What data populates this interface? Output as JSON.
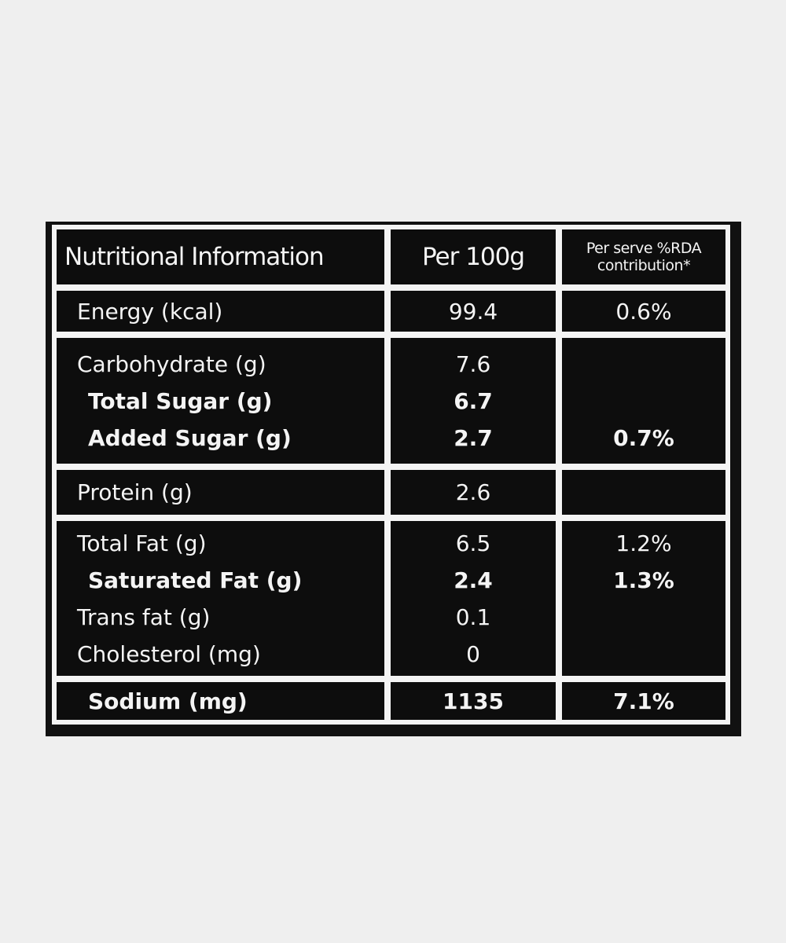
{
  "table": {
    "header": [
      "Nutritional Information",
      "Per 100g",
      "Per serve %RDA contribution*"
    ],
    "groups": [
      {
        "rows": [
          {
            "name": "Energy (kcal)",
            "per100g": "99.4",
            "rda": "0.6%"
          }
        ]
      },
      {
        "rows": [
          {
            "name": "Carbohydrate (g)",
            "per100g": "7.6"
          },
          {
            "name": "Total Sugar (g)",
            "per100g": "6.7",
            "bold": true
          },
          {
            "name": "Added Sugar (g)",
            "per100g": "2.7",
            "rda": "0.7%",
            "bold": true
          }
        ]
      },
      {
        "rows": [
          {
            "name": "Protein (g)",
            "per100g": "2.6"
          }
        ]
      },
      {
        "rows": [
          {
            "name": "Total Fat (g)",
            "per100g": "6.5",
            "rda": "1.2%"
          },
          {
            "name": "Saturated Fat (g)",
            "per100g": "2.4",
            "rda": "1.3%",
            "bold": true
          },
          {
            "name": "Trans fat (g)",
            "per100g": "0.1"
          },
          {
            "name": "Cholesterol (mg)",
            "per100g": "0"
          }
        ]
      },
      {
        "rows": [
          {
            "name": "Sodium (mg)",
            "per100g": "1135",
            "rda": "7.1%",
            "bold": true
          }
        ]
      }
    ]
  }
}
